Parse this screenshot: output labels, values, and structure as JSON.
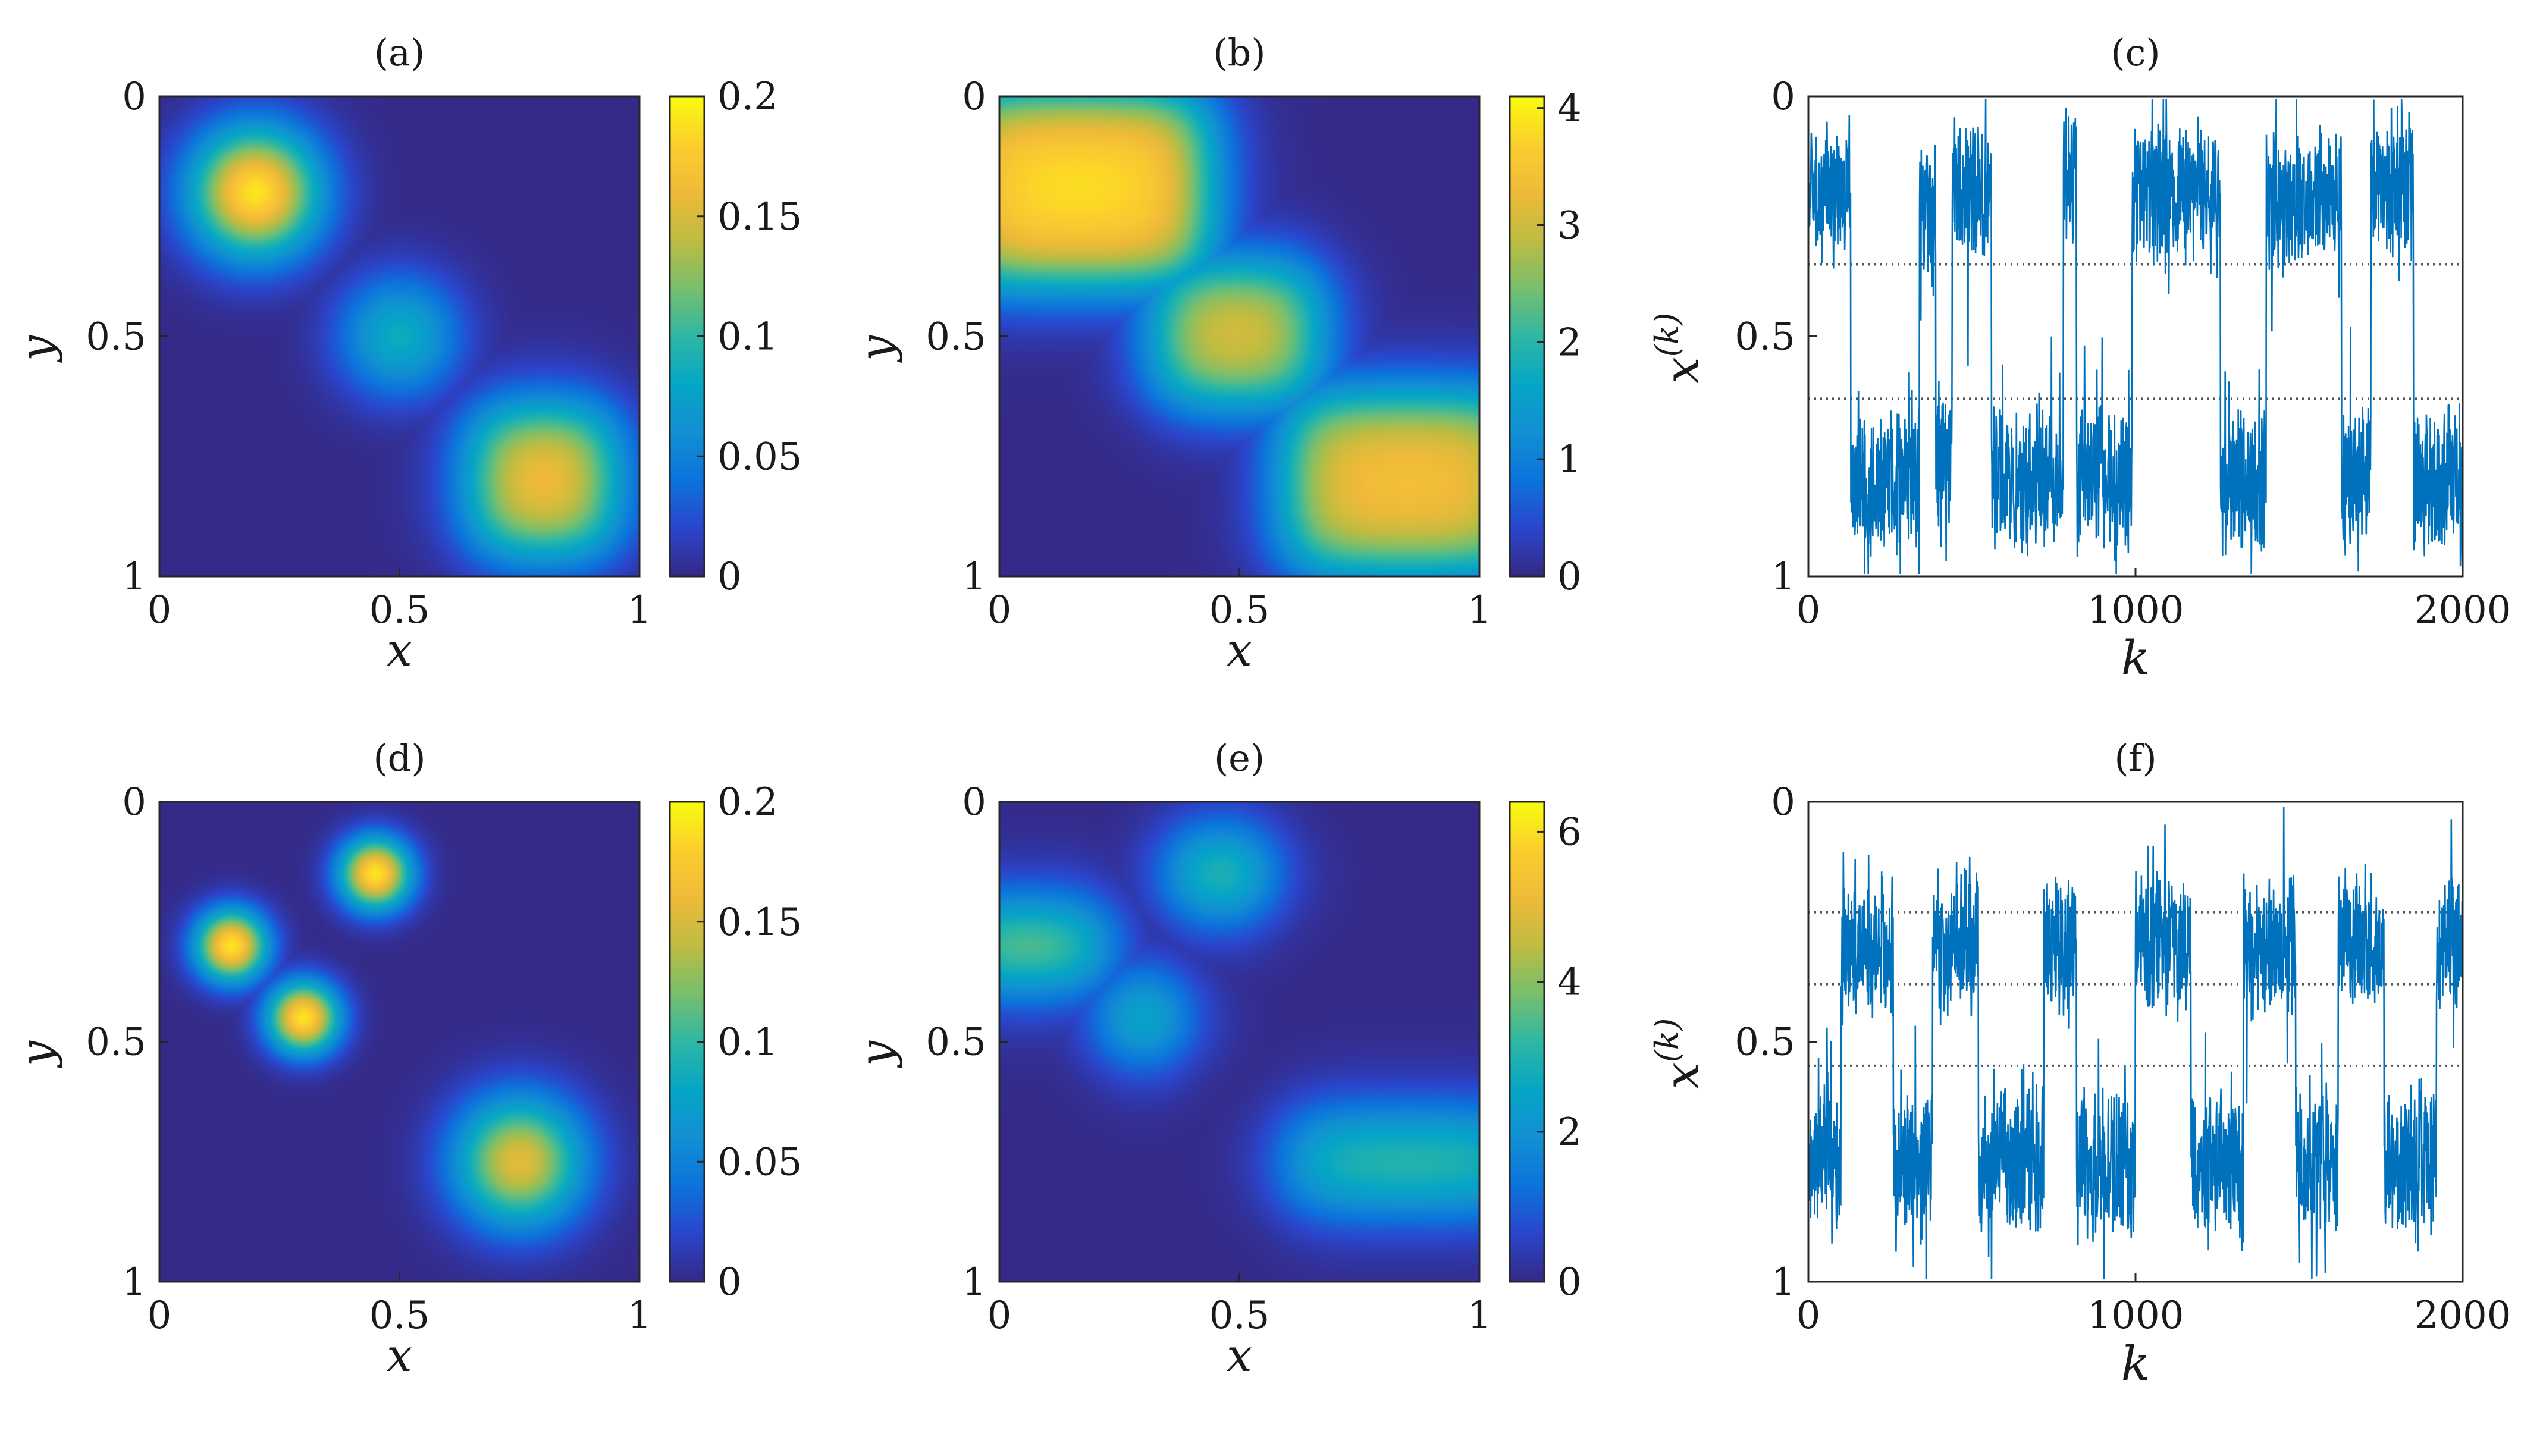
{
  "chart_data": [
    {
      "panel": "(a)",
      "type": "heatmap",
      "xlabel": "x",
      "ylabel": "y",
      "xlim": [
        0,
        1
      ],
      "ylim": [
        0,
        1
      ],
      "y_direction": "reversed",
      "x_ticks": [
        "0",
        "0.5",
        "1"
      ],
      "y_ticks": [
        "0",
        "0.5",
        "1"
      ],
      "colorbar": {
        "range": [
          0,
          0.2
        ],
        "ticks": [
          "0",
          "0.05",
          "0.1",
          "0.15",
          "0.2"
        ]
      },
      "features": [
        {
          "shape": "round",
          "cx": 0.2,
          "cy": 0.2,
          "rx": 0.2,
          "ry": 0.2,
          "peak": 0.19
        },
        {
          "shape": "round",
          "cx": 0.5,
          "cy": 0.5,
          "rx": 0.19,
          "ry": 0.19,
          "peak": 0.085
        },
        {
          "shape": "box",
          "x0": 0.66,
          "x1": 0.94,
          "y0": 0.66,
          "y1": 0.94,
          "peak": 0.19
        }
      ]
    },
    {
      "panel": "(b)",
      "type": "heatmap",
      "xlabel": "x",
      "ylabel": "y",
      "xlim": [
        0,
        1
      ],
      "ylim": [
        0,
        1
      ],
      "y_direction": "reversed",
      "x_ticks": [
        "0",
        "0.5",
        "1"
      ],
      "y_ticks": [
        "0",
        "0.5",
        "1"
      ],
      "colorbar": {
        "range": [
          0,
          4.1
        ],
        "ticks": [
          "0",
          "1",
          "2",
          "3",
          "4"
        ]
      },
      "features": [
        {
          "shape": "box",
          "x0": -0.1,
          "x1": 0.43,
          "y0": 0.0,
          "y1": 0.38,
          "peak": 3.95
        },
        {
          "shape": "box",
          "x0": 0.33,
          "x1": 0.66,
          "y0": 0.36,
          "y1": 0.63,
          "peak": 3.5
        },
        {
          "shape": "box",
          "x0": 0.6,
          "x1": 1.1,
          "y0": 0.63,
          "y1": 0.98,
          "peak": 3.55
        }
      ]
    },
    {
      "panel": "(c)",
      "type": "line",
      "xlabel": "k",
      "ylabel": "x^(k)",
      "xlim": [
        0,
        2000
      ],
      "ylim": [
        0,
        1
      ],
      "y_direction": "reversed",
      "x_ticks": [
        "0",
        "1000",
        "2000"
      ],
      "y_ticks": [
        "0",
        "0.5",
        "1"
      ],
      "reference_lines_y": [
        0.35,
        0.63
      ],
      "series": [
        {
          "segments": [
            {
              "start": 0,
              "end": 130,
              "level": 0.2
            },
            {
              "start": 130,
              "end": 340,
              "level": 0.8
            },
            {
              "start": 340,
              "end": 390,
              "level": 0.25
            },
            {
              "start": 390,
              "end": 440,
              "level": 0.75
            },
            {
              "start": 440,
              "end": 560,
              "level": 0.2
            },
            {
              "start": 560,
              "end": 780,
              "level": 0.8
            },
            {
              "start": 780,
              "end": 820,
              "level": 0.15
            },
            {
              "start": 820,
              "end": 990,
              "level": 0.8
            },
            {
              "start": 990,
              "end": 1260,
              "level": 0.2
            },
            {
              "start": 1260,
              "end": 1400,
              "level": 0.8
            },
            {
              "start": 1400,
              "end": 1630,
              "level": 0.22
            },
            {
              "start": 1630,
              "end": 1720,
              "level": 0.8
            },
            {
              "start": 1720,
              "end": 1850,
              "level": 0.18
            },
            {
              "start": 1850,
              "end": 2000,
              "level": 0.8
            }
          ]
        }
      ]
    },
    {
      "panel": "(d)",
      "type": "heatmap",
      "xlabel": "x",
      "ylabel": "y",
      "xlim": [
        0,
        1
      ],
      "ylim": [
        0,
        1
      ],
      "y_direction": "reversed",
      "x_ticks": [
        "0",
        "0.5",
        "1"
      ],
      "y_ticks": [
        "0",
        "0.5",
        "1"
      ],
      "colorbar": {
        "range": [
          0,
          0.2
        ],
        "ticks": [
          "0",
          "0.05",
          "0.1",
          "0.15",
          "0.2"
        ]
      },
      "features": [
        {
          "shape": "round",
          "cx": 0.45,
          "cy": 0.15,
          "rx": 0.11,
          "ry": 0.11,
          "peak": 0.19
        },
        {
          "shape": "round",
          "cx": 0.15,
          "cy": 0.3,
          "rx": 0.11,
          "ry": 0.11,
          "peak": 0.19
        },
        {
          "shape": "round",
          "cx": 0.3,
          "cy": 0.45,
          "rx": 0.11,
          "ry": 0.11,
          "peak": 0.19
        },
        {
          "shape": "round",
          "cx": 0.75,
          "cy": 0.75,
          "rx": 0.2,
          "ry": 0.2,
          "peak": 0.155
        }
      ]
    },
    {
      "panel": "(e)",
      "type": "heatmap",
      "xlabel": "x",
      "ylabel": "y",
      "xlim": [
        0,
        1
      ],
      "ylim": [
        0,
        1
      ],
      "y_direction": "reversed",
      "x_ticks": [
        "0",
        "0.5",
        "1"
      ],
      "y_ticks": [
        "0",
        "0.5",
        "1"
      ],
      "colorbar": {
        "range": [
          0,
          6.4
        ],
        "ticks": [
          "0",
          "2",
          "4",
          "6"
        ]
      },
      "features": [
        {
          "shape": "box",
          "x0": 0.37,
          "x1": 0.55,
          "y0": 0.08,
          "y1": 0.22,
          "peak": 5.5
        },
        {
          "shape": "box",
          "x0": -0.1,
          "x1": 0.22,
          "y0": 0.23,
          "y1": 0.37,
          "peak": 5.3
        },
        {
          "shape": "box",
          "x0": 0.23,
          "x1": 0.37,
          "y0": 0.38,
          "y1": 0.52,
          "peak": 5.2
        },
        {
          "shape": "box",
          "x0": 0.6,
          "x1": 1.1,
          "y0": 0.66,
          "y1": 0.84,
          "peak": 3.9
        }
      ]
    },
    {
      "panel": "(f)",
      "type": "line",
      "xlabel": "k",
      "ylabel": "x^(k)",
      "xlim": [
        0,
        2000
      ],
      "ylim": [
        0,
        1
      ],
      "y_direction": "reversed",
      "x_ticks": [
        "0",
        "1000",
        "2000"
      ],
      "y_ticks": [
        "0",
        "0.5",
        "1"
      ],
      "reference_lines_y": [
        0.23,
        0.38,
        0.55
      ],
      "series": [
        {
          "segments": [
            {
              "start": 0,
              "end": 100,
              "level": 0.75
            },
            {
              "start": 100,
              "end": 260,
              "level": 0.3
            },
            {
              "start": 260,
              "end": 380,
              "level": 0.75
            },
            {
              "start": 380,
              "end": 520,
              "level": 0.3
            },
            {
              "start": 520,
              "end": 720,
              "level": 0.75
            },
            {
              "start": 720,
              "end": 820,
              "level": 0.3
            },
            {
              "start": 820,
              "end": 1000,
              "level": 0.75
            },
            {
              "start": 1000,
              "end": 1170,
              "level": 0.3
            },
            {
              "start": 1170,
              "end": 1330,
              "level": 0.75
            },
            {
              "start": 1330,
              "end": 1490,
              "level": 0.3
            },
            {
              "start": 1490,
              "end": 1620,
              "level": 0.75
            },
            {
              "start": 1620,
              "end": 1760,
              "level": 0.3
            },
            {
              "start": 1760,
              "end": 1920,
              "level": 0.75
            },
            {
              "start": 1920,
              "end": 2000,
              "level": 0.3
            }
          ]
        }
      ]
    }
  ]
}
